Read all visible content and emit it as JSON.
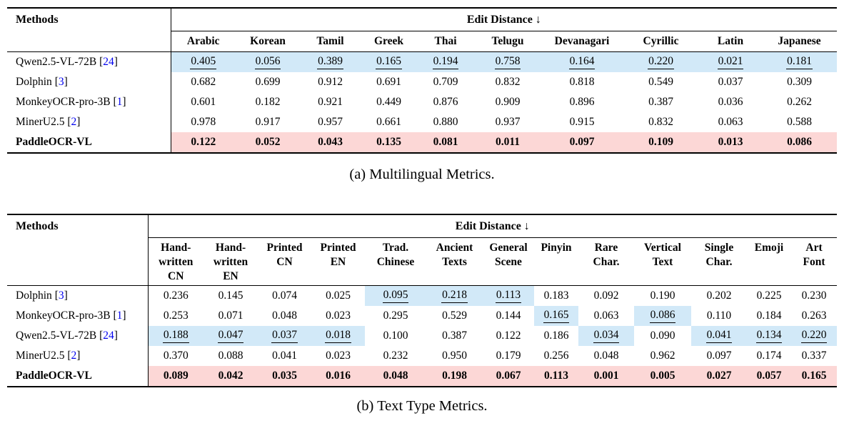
{
  "colors": {
    "highlight_second": "#d2e9f8",
    "highlight_best": "#fcd7d6",
    "citation_blue": "#0000ee"
  },
  "tables": [
    {
      "caption": "(a) Multilingual Metrics.",
      "methods_header": "Methods",
      "group_header": "Edit Distance ↓",
      "columns": [
        "Arabic",
        "Korean",
        "Tamil",
        "Greek",
        "Thai",
        "Telugu",
        "Devanagari",
        "Cyrillic",
        "Latin",
        "Japanese"
      ],
      "rows": [
        {
          "method": "Qwen2.5-VL-72B",
          "ref": "24",
          "best": false,
          "values": [
            "0.405",
            "0.056",
            "0.389",
            "0.165",
            "0.194",
            "0.758",
            "0.164",
            "0.220",
            "0.021",
            "0.181"
          ],
          "second_cols": [
            0,
            1,
            2,
            3,
            4,
            5,
            6,
            7,
            8,
            9
          ]
        },
        {
          "method": "Dolphin",
          "ref": "3",
          "best": false,
          "values": [
            "0.682",
            "0.699",
            "0.912",
            "0.691",
            "0.709",
            "0.832",
            "0.818",
            "0.549",
            "0.037",
            "0.309"
          ],
          "second_cols": []
        },
        {
          "method": "MonkeyOCR-pro-3B",
          "ref": "1",
          "best": false,
          "values": [
            "0.601",
            "0.182",
            "0.921",
            "0.449",
            "0.876",
            "0.909",
            "0.896",
            "0.387",
            "0.036",
            "0.262"
          ],
          "second_cols": []
        },
        {
          "method": "MinerU2.5",
          "ref": "2",
          "best": false,
          "values": [
            "0.978",
            "0.917",
            "0.957",
            "0.661",
            "0.880",
            "0.937",
            "0.915",
            "0.832",
            "0.063",
            "0.588"
          ],
          "second_cols": []
        },
        {
          "method": "PaddleOCR-VL",
          "ref": null,
          "best": true,
          "values": [
            "0.122",
            "0.052",
            "0.043",
            "0.135",
            "0.081",
            "0.011",
            "0.097",
            "0.109",
            "0.013",
            "0.086"
          ],
          "second_cols": []
        }
      ]
    },
    {
      "caption": "(b) Text Type Metrics.",
      "methods_header": "Methods",
      "group_header": "Edit Distance ↓",
      "columns": [
        "Hand-\nwritten\nCN",
        "Hand-\nwritten\nEN",
        "Printed\nCN",
        "Printed\nEN",
        "Trad.\nChinese",
        "Ancient\nTexts",
        "General\nScene",
        "Pinyin",
        "Rare\nChar.",
        "Vertical\nText",
        "Single\nChar.",
        "Emoji",
        "Art\nFont"
      ],
      "rows": [
        {
          "method": "Dolphin",
          "ref": "3",
          "best": false,
          "values": [
            "0.236",
            "0.145",
            "0.074",
            "0.025",
            "0.095",
            "0.218",
            "0.113",
            "0.183",
            "0.092",
            "0.190",
            "0.202",
            "0.225",
            "0.230"
          ],
          "second_cols": [
            4,
            5,
            6
          ]
        },
        {
          "method": "MonkeyOCR-pro-3B",
          "ref": "1",
          "best": false,
          "values": [
            "0.253",
            "0.071",
            "0.048",
            "0.023",
            "0.295",
            "0.529",
            "0.144",
            "0.165",
            "0.063",
            "0.086",
            "0.110",
            "0.184",
            "0.263"
          ],
          "second_cols": [
            7,
            9
          ]
        },
        {
          "method": "Qwen2.5-VL-72B",
          "ref": "24",
          "best": false,
          "values": [
            "0.188",
            "0.047",
            "0.037",
            "0.018",
            "0.100",
            "0.387",
            "0.122",
            "0.186",
            "0.034",
            "0.090",
            "0.041",
            "0.134",
            "0.220"
          ],
          "second_cols": [
            0,
            1,
            2,
            3,
            8,
            10,
            11,
            12
          ]
        },
        {
          "method": "MinerU2.5",
          "ref": "2",
          "best": false,
          "values": [
            "0.370",
            "0.088",
            "0.041",
            "0.023",
            "0.232",
            "0.950",
            "0.179",
            "0.256",
            "0.048",
            "0.962",
            "0.097",
            "0.174",
            "0.337"
          ],
          "second_cols": []
        },
        {
          "method": "PaddleOCR-VL",
          "ref": null,
          "best": true,
          "values": [
            "0.089",
            "0.042",
            "0.035",
            "0.016",
            "0.048",
            "0.198",
            "0.067",
            "0.113",
            "0.001",
            "0.005",
            "0.027",
            "0.057",
            "0.165"
          ],
          "second_cols": []
        }
      ]
    }
  ]
}
